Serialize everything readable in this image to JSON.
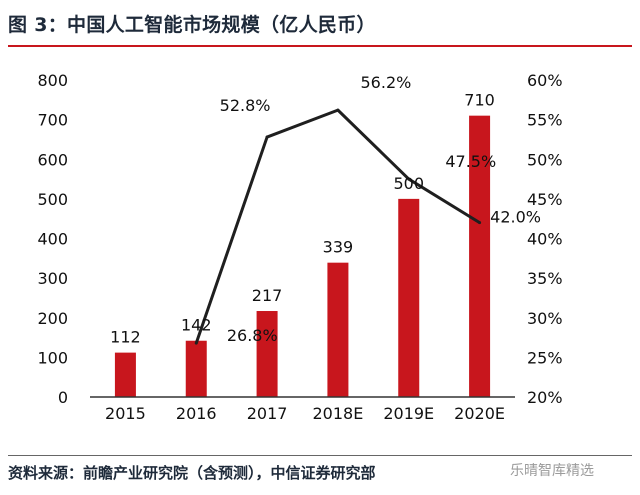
{
  "title": "图 3：中国人工智能市场规模（亿人民币）",
  "source": "资料来源：前瞻产业研究院（含预测），中信证券研究部",
  "watermark": "乐晴智库精选",
  "colors": {
    "bar": "#c8161d",
    "line": "#1f1f1f",
    "title_rule": "#c8161d"
  },
  "chart_data": {
    "type": "bar",
    "categories": [
      "2015",
      "2016",
      "2017",
      "2018E",
      "2019E",
      "2020E"
    ],
    "series": [
      {
        "type": "bar",
        "axis": "left",
        "values": [
          112,
          142,
          217,
          339,
          500,
          710
        ],
        "labels": [
          "112",
          "142",
          "217",
          "339",
          "500",
          "710"
        ]
      },
      {
        "type": "line",
        "axis": "right",
        "x": [
          "2016",
          "2017",
          "2018E",
          "2019E",
          "2020E"
        ],
        "values": [
          26.8,
          52.8,
          56.2,
          47.5,
          42.0
        ],
        "labels": [
          "26.8%",
          "52.8%",
          "56.2%",
          "47.5%",
          "42.0%"
        ]
      }
    ],
    "left_axis": {
      "ylim": [
        0,
        800
      ],
      "ticks": [
        "0",
        "100",
        "200",
        "300",
        "400",
        "500",
        "600",
        "700",
        "800"
      ]
    },
    "right_axis": {
      "ylim": [
        20,
        60
      ],
      "ticks": [
        "20%",
        "25%",
        "30%",
        "35%",
        "40%",
        "45%",
        "50%",
        "55%",
        "60%"
      ]
    },
    "grid": false,
    "legend": "none"
  }
}
